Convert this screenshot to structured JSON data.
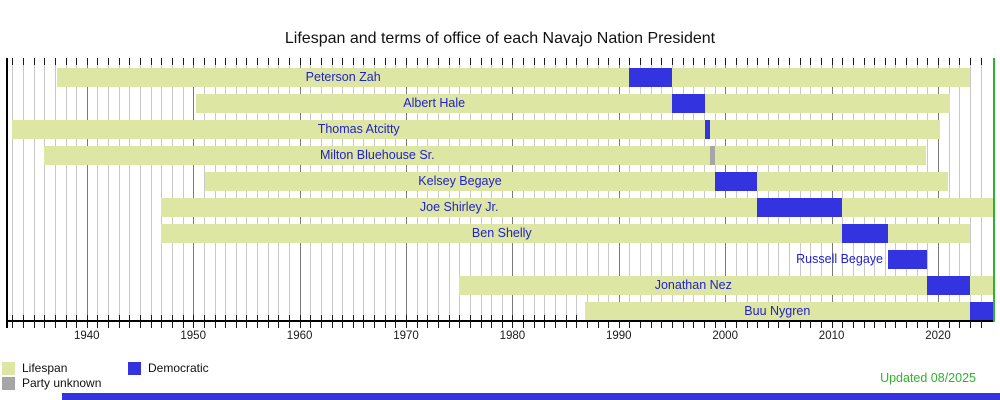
{
  "chart_data": {
    "type": "bar",
    "subtype": "horizontal-timeline-gantt",
    "title": "Lifespan and terms of office of each Navajo Nation President",
    "xlabel": "",
    "ylabel": "",
    "axis": {
      "x_min": 1932.5,
      "x_max": 2025.2,
      "now": 2025.2,
      "minor_tick_every_years": 1,
      "decade_tick_labels": [
        "1940",
        "1950",
        "1960",
        "1970",
        "1980",
        "1990",
        "2000",
        "2010",
        "2020"
      ],
      "grid": "on"
    },
    "presidents": [
      {
        "name": "Peterson Zah",
        "lifespan": [
          1937.2,
          2023.0
        ],
        "term": [
          1991.0,
          1995.0
        ],
        "party": "Democratic"
      },
      {
        "name": "Albert Hale",
        "lifespan": [
          1950.3,
          2021.1
        ],
        "term": [
          1995.0,
          1998.1
        ],
        "party": "Democratic"
      },
      {
        "name": "Thomas Atcitty",
        "lifespan": [
          1933.0,
          2020.2
        ],
        "term": [
          1998.1,
          1998.6
        ],
        "party": "Democratic"
      },
      {
        "name": "Milton Bluehouse Sr.",
        "lifespan": [
          1936.0,
          2018.9
        ],
        "term": [
          1998.6,
          1999.05
        ],
        "party": "Party unknown"
      },
      {
        "name": "Kelsey Begaye",
        "lifespan": [
          1951.1,
          2020.9
        ],
        "term": [
          1999.05,
          2003.0
        ],
        "party": "Democratic"
      },
      {
        "name": "Joe Shirley Jr.",
        "lifespan": [
          1947.0,
          null
        ],
        "term": [
          2003.0,
          2011.0
        ],
        "party": "Democratic"
      },
      {
        "name": "Ben Shelly",
        "lifespan": [
          1947.0,
          2023.0
        ],
        "term": [
          2011.0,
          2015.3
        ],
        "party": "Democratic"
      },
      {
        "name": "Russell Begaye",
        "lifespan": null,
        "term": [
          2015.3,
          2019.0
        ],
        "party": "Democratic"
      },
      {
        "name": "Jonathan Nez",
        "lifespan": [
          1975.0,
          null
        ],
        "term": [
          2019.0,
          2023.0
        ],
        "party": "Democratic"
      },
      {
        "name": "Buu Nygren",
        "lifespan": [
          1986.8,
          null
        ],
        "term": [
          2023.0,
          null
        ],
        "party": "Democratic"
      }
    ]
  },
  "legend": {
    "items": [
      {
        "id": "lifespan",
        "label": "Lifespan",
        "color": "#dde6a3"
      },
      {
        "id": "democratic",
        "label": "Democratic",
        "color": "#3333e0"
      },
      {
        "id": "party-unknown",
        "label": "Party unknown",
        "color": "#a6a6a6"
      }
    ]
  },
  "updated_note": "Updated 08/2025",
  "colors": {
    "lifespan_bar": "#dde6a3",
    "democratic_bar": "#3333e0",
    "party_unknown_bar": "#a6a6a6",
    "name_text": "#2222cc",
    "now_line": "#2eb32e",
    "updated_text": "#2eb32e",
    "grid_minor": "#c8c8c8",
    "grid_major": "#7a7a7a",
    "axis": "#000000",
    "bottom_strip": "#3333e0"
  }
}
